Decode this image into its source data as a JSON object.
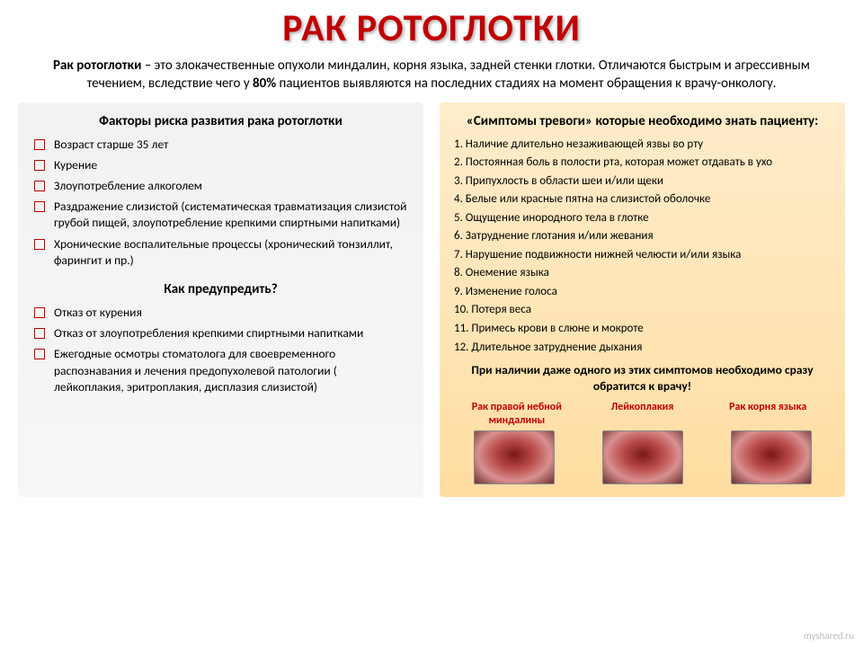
{
  "title": "РАК РОТОГЛОТКИ",
  "intro_prefix": "Рак ротоглотки",
  "intro_body": " – это злокачественные опухоли миндалин, корня языка, задней стенки глотки. Отличаются быстрым и агрессивным течением, вследствие чего у ",
  "intro_pct": "80%",
  "intro_after": " пациентов выявляются на последних стадиях на момент обращения к врачу-онкологу.",
  "left": {
    "risk_title": "Факторы риска развития рака ротоглотки",
    "risks": [
      "Возраст старше 35 лет",
      "Курение",
      "Злоупотребление алкоголем",
      "Раздражение слизистой (систематическая травматизация слизистой грубой пищей, злоупотребление крепкими спиртными напитками)",
      "Хронические воспалительные процессы (хронический тонзиллит, фарингит и пр.)"
    ],
    "prevent_title": "Как предупредить?",
    "prevent": [
      "Отказ от курения",
      "Отказ от злоупотребления крепкими спиртными напитками",
      "Ежегодные осмотры стоматолога для своевременного распознавания и лечения предопухолевой патологии ( лейкоплакия, эритроплакия, дисплазия слизистой)"
    ]
  },
  "right": {
    "sym_title": "«Симптомы тревоги» которые необходимо знать пациенту:",
    "symptoms": [
      "1. Наличие длительно незаживающей язвы во рту",
      "2. Постоянная боль в полости рта, которая может отдавать в ухо",
      "3. Припухлость в области шеи и/или щеки",
      "4. Белые или красные пятна на слизистой оболочке",
      "5. Ощущение инородного тела в глотке",
      "6. Затруднение глотания и/или жевания",
      "7. Нарушение подвижности нижней челюсти и/или языка",
      "8. Онемение языка",
      "9. Изменение голоса",
      "10. Потеря веса",
      "11. Примесь крови в слюне и мокроте",
      "12. Длительное затруднение дыхания"
    ],
    "warning": "При наличии даже одного из этих симптомов необходимо сразу обратится к врачу!",
    "captions": [
      "Рак правой небной миндалины",
      "Лейкоплакия",
      "Рак корня языка"
    ]
  },
  "watermark": "myshared.ru",
  "colors": {
    "accent": "#c00000",
    "left_bg": "#f2f2f2",
    "right_bg_top": "#ffeccb",
    "right_bg_bot": "#ffdca0",
    "text": "#000000"
  }
}
